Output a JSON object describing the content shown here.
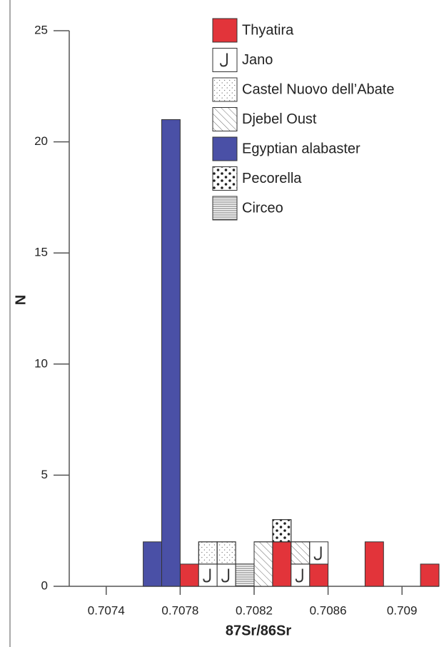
{
  "chart_data": {
    "type": "stacked-histogram",
    "xlabel": "87Sr/86Sr",
    "ylabel": "N",
    "bins": [
      0.7076,
      0.7077,
      0.7078,
      0.7079,
      0.708,
      0.7081,
      0.7082,
      0.7083,
      0.7084,
      0.7085,
      0.7086,
      0.7087,
      0.7088,
      0.7089,
      0.709,
      0.7091,
      0.7092
    ],
    "xlim": [
      0.7072,
      0.7092
    ],
    "xticks": [
      0.7074,
      0.7078,
      0.7082,
      0.7086,
      0.709
    ],
    "ylim": [
      0,
      25
    ],
    "yticks": [
      0,
      5,
      10,
      15,
      20,
      25
    ],
    "series": [
      {
        "name": "Thyatira",
        "color": "#e2343a",
        "pattern": "solid",
        "values": [
          0,
          0,
          1,
          0,
          0,
          0,
          0,
          2,
          0,
          1,
          0,
          0,
          2,
          0,
          0,
          1
        ]
      },
      {
        "name": "Jano",
        "color": "#ffffff",
        "pattern": "J",
        "values": [
          0,
          0,
          0,
          1,
          1,
          0,
          0,
          0,
          1,
          1,
          0,
          0,
          0,
          0,
          0,
          0
        ]
      },
      {
        "name": "Castel Nuovo dell’Abate",
        "color": "#ffffff",
        "pattern": "fine-dots",
        "values": [
          0,
          0,
          0,
          1,
          1,
          0,
          0,
          0,
          0,
          0,
          0,
          0,
          0,
          0,
          0,
          0
        ]
      },
      {
        "name": "Djebel Oust",
        "color": "#ffffff",
        "pattern": "diagonal",
        "values": [
          0,
          0,
          0,
          0,
          0,
          0,
          2,
          0,
          1,
          0,
          0,
          0,
          0,
          0,
          0,
          0
        ]
      },
      {
        "name": "Egyptian alabaster",
        "color": "#4a50a6",
        "pattern": "solid",
        "values": [
          2,
          21,
          0,
          0,
          0,
          0,
          0,
          0,
          0,
          0,
          0,
          0,
          0,
          0,
          0,
          0
        ]
      },
      {
        "name": "Pecorella",
        "color": "#ffffff",
        "pattern": "dots",
        "values": [
          0,
          0,
          0,
          0,
          0,
          0,
          0,
          1,
          0,
          0,
          0,
          0,
          0,
          0,
          0,
          0
        ]
      },
      {
        "name": "Circeo",
        "color": "#ffffff",
        "pattern": "horizontal",
        "values": [
          0,
          0,
          0,
          0,
          0,
          1,
          0,
          0,
          0,
          0,
          0,
          0,
          0,
          0,
          0,
          0
        ]
      }
    ]
  }
}
